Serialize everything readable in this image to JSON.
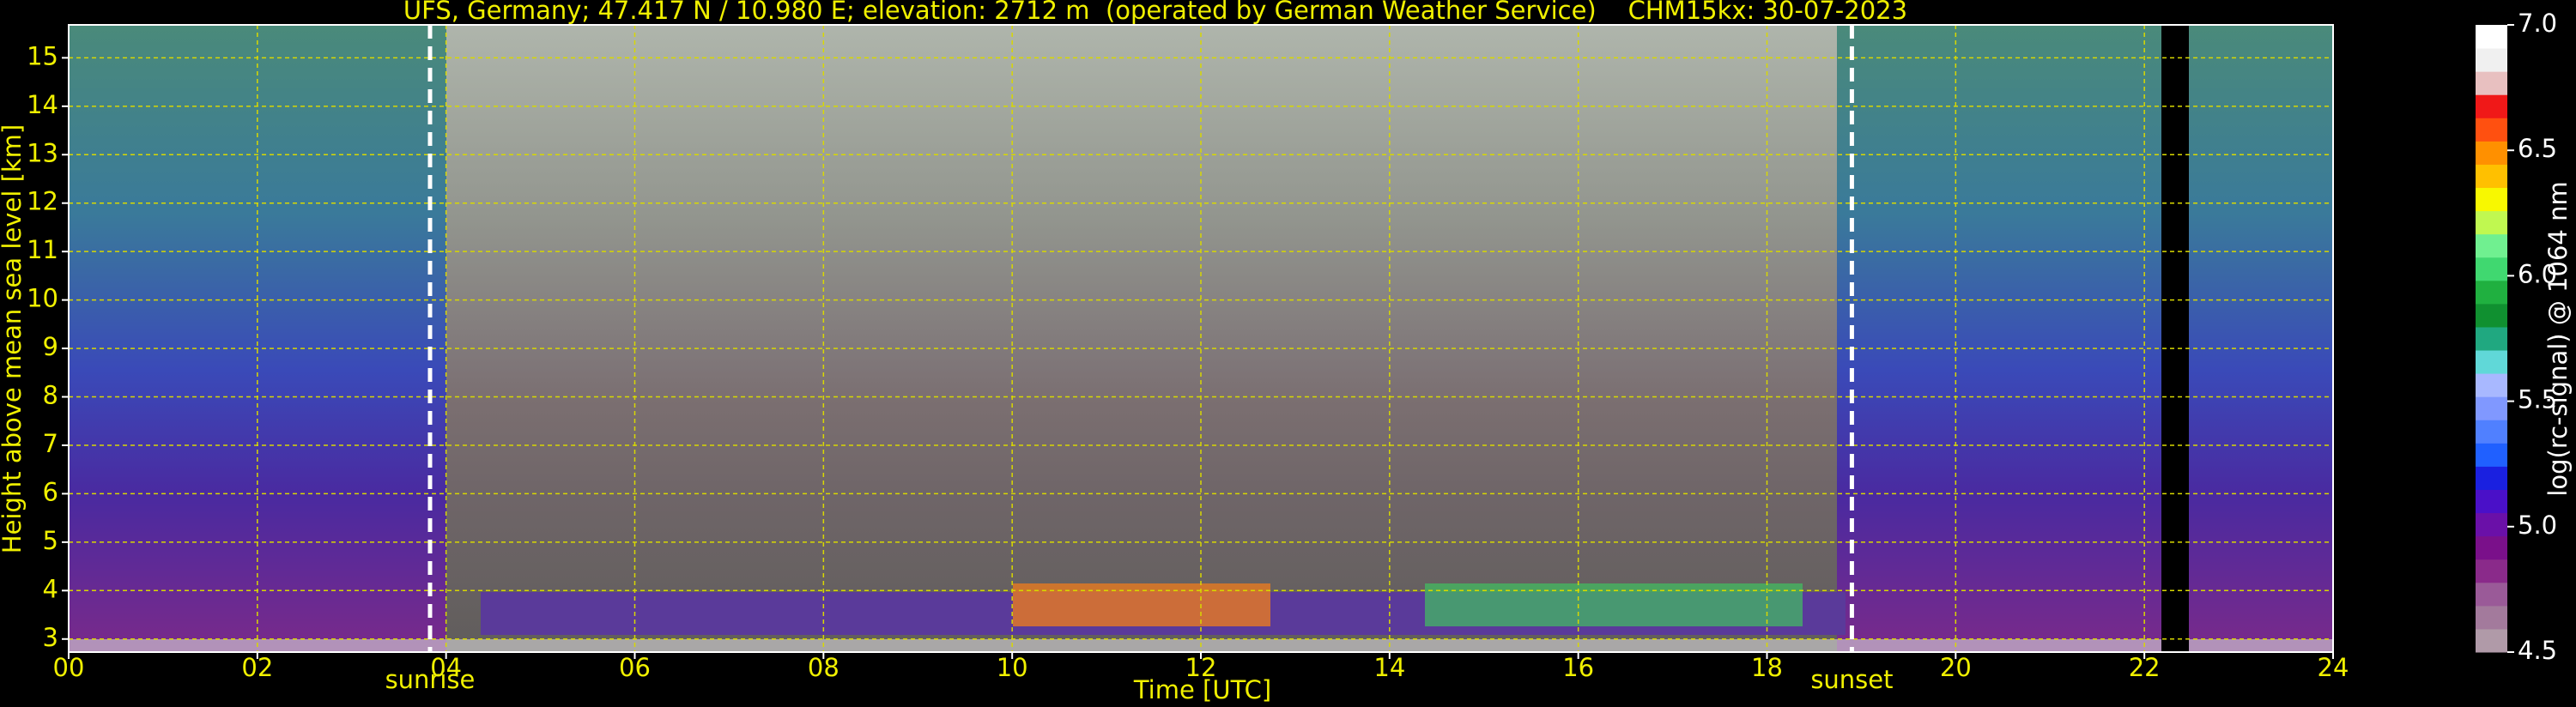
{
  "chart_data": {
    "type": "heatmap",
    "title": "UFS, Germany; 47.417 N / 10.980 E; elevation: 2712 m  (operated by German Weather Service)    CHM15kx: 30-07-2023",
    "x_label": "Time [UTC]",
    "y_label": "Height above mean sea level [km]",
    "xlim": [
      0,
      24
    ],
    "xticks": [
      {
        "value": 0,
        "label": "00"
      },
      {
        "value": 2,
        "label": "02"
      },
      {
        "value": 4,
        "label": "04"
      },
      {
        "value": 6,
        "label": "06"
      },
      {
        "value": 8,
        "label": "08"
      },
      {
        "value": 10,
        "label": "10"
      },
      {
        "value": 12,
        "label": "12"
      },
      {
        "value": 14,
        "label": "14"
      },
      {
        "value": 16,
        "label": "16"
      },
      {
        "value": 18,
        "label": "18"
      },
      {
        "value": 20,
        "label": "20"
      },
      {
        "value": 22,
        "label": "22"
      },
      {
        "value": 24,
        "label": "24"
      }
    ],
    "ylim": [
      2.73,
      15.68
    ],
    "yticks": [
      3,
      4,
      5,
      6,
      7,
      8,
      9,
      10,
      11,
      12,
      13,
      14,
      15
    ],
    "grid": true,
    "grid_color": "#d8d800",
    "markers": [
      {
        "label": "sunrise",
        "x": 3.83
      },
      {
        "label": "sunset",
        "x": 18.9
      }
    ],
    "colorbar": {
      "label": "log(rc-signal) @ 1064 nm",
      "lim": [
        4.5,
        7
      ],
      "ticks": [
        4.5,
        {
          "value": 5,
          "label": "5.0"
        },
        5.5,
        {
          "value": 6,
          "label": "6.0"
        },
        6.5,
        {
          "value": 7,
          "label": "7.0"
        }
      ],
      "colors": [
        "#b09aa8",
        "#a37a9c",
        "#9a5a98",
        "#8a2a8a",
        "#7a108a",
        "#6a10a8",
        "#4a10c8",
        "#1a20e0",
        "#2060ff",
        "#5080ff",
        "#8098ff",
        "#a8b8ff",
        "#60d8d8",
        "#20a880",
        "#109030",
        "#20b040",
        "#40d870",
        "#70f090",
        "#c0f850",
        "#f8f800",
        "#ffc000",
        "#ff9000",
        "#ff5010",
        "#f01818",
        "#e8c0c0",
        "#f0f0f0",
        "#ffffff"
      ]
    }
  }
}
